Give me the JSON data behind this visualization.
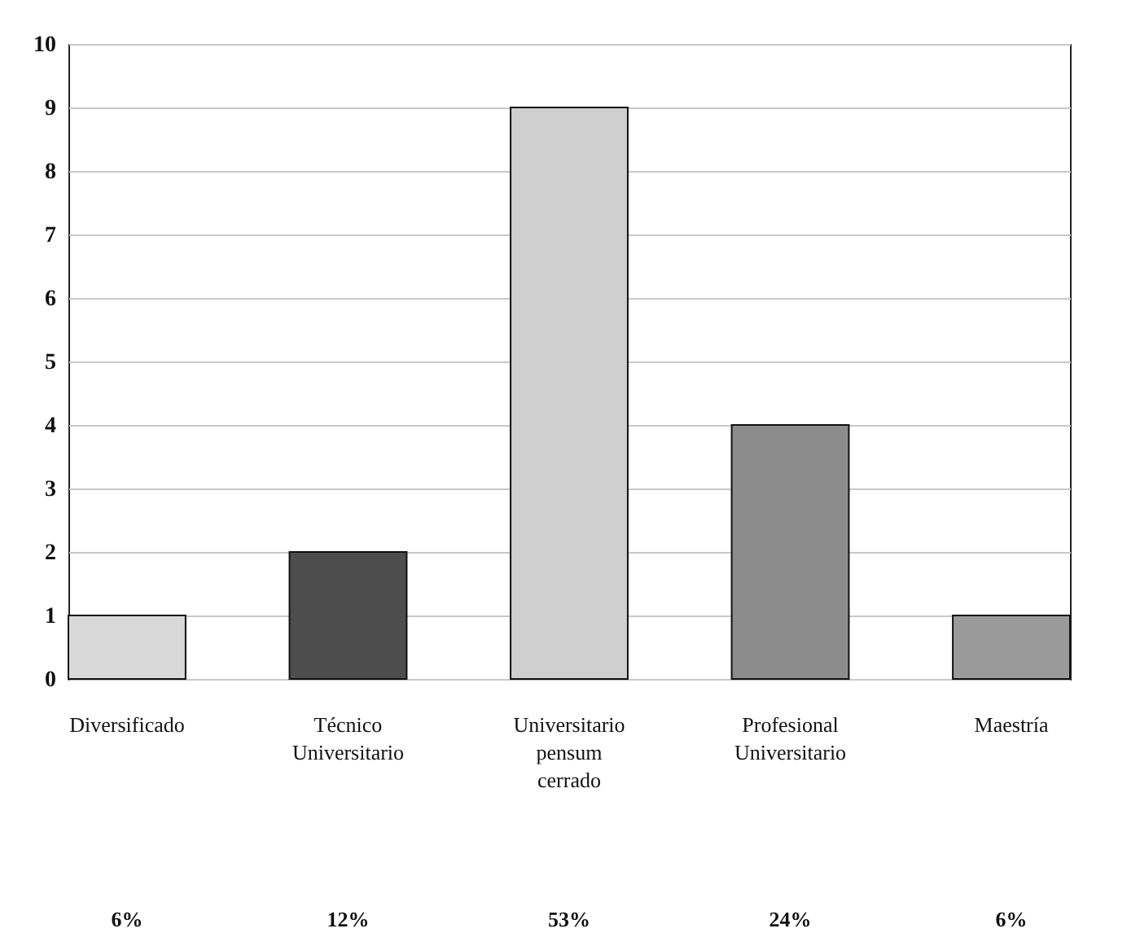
{
  "chart_data": {
    "type": "bar",
    "categories": [
      "Diversificado",
      "Técnico Universitario",
      "Universitario pensum cerrado",
      "Profesional Universitario",
      "Maestría"
    ],
    "values": [
      1,
      2,
      9,
      4,
      1
    ],
    "colors": [
      "#d9d9d9",
      "#4d4d4d",
      "#cfcfcf",
      "#8c8c8c",
      "#9a9a9a"
    ],
    "ylim": [
      0,
      10
    ],
    "yticks": [
      0,
      1,
      2,
      3,
      4,
      5,
      6,
      7,
      8,
      9,
      10
    ],
    "grid": "y",
    "annotations": [
      "6%",
      "12%",
      "53%",
      "24%",
      "6%"
    ]
  }
}
